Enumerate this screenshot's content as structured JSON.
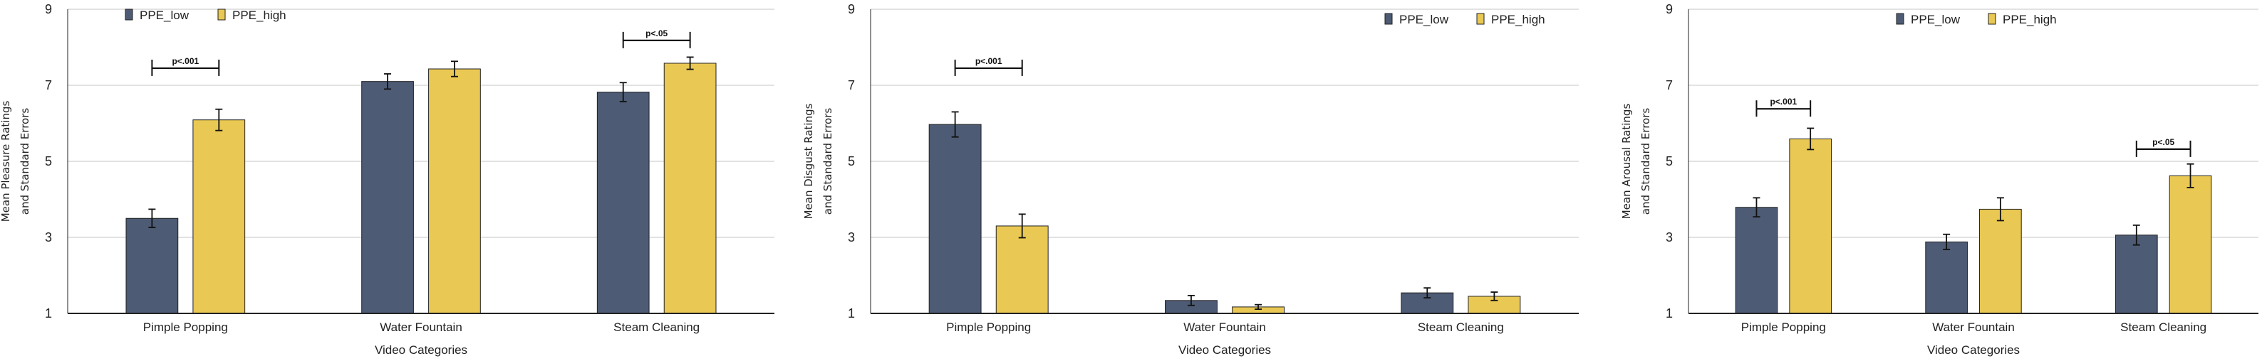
{
  "colors": {
    "PPE_low": "#4d5b74",
    "PPE_high": "#e9c853",
    "grid": "#d9d9d9",
    "axis": "#222222"
  },
  "chart_data": [
    {
      "type": "bar",
      "ylabel_lines": [
        "Mean Pleasure Ratings",
        "and Standard Errors"
      ],
      "xlabel": "Video Categories",
      "ylim": [
        1,
        9
      ],
      "yticks": [
        "1",
        "3",
        "5",
        "7",
        "9"
      ],
      "grid": true,
      "legend": "top-left",
      "categories": [
        "Pimple Popping",
        "Water Fountain",
        "Steam Cleaning"
      ],
      "series": [
        {
          "name": "PPE_low",
          "values": [
            3.5,
            7.1,
            6.82
          ],
          "se": [
            0.24,
            0.2,
            0.25
          ]
        },
        {
          "name": "PPE_high",
          "values": [
            6.09,
            7.43,
            7.58
          ],
          "se": [
            0.28,
            0.2,
            0.16
          ]
        }
      ],
      "annotations": [
        {
          "category": 0,
          "text": "p<.001",
          "y": 7.45
        },
        {
          "category": 2,
          "text": "p<.05",
          "y": 8.18
        }
      ]
    },
    {
      "type": "bar",
      "ylabel_lines": [
        "Mean Disgust Ratings",
        "and Standard Errors"
      ],
      "xlabel": "Video Categories",
      "ylim": [
        1,
        9
      ],
      "yticks": [
        "1",
        "3",
        "5",
        "7",
        "9"
      ],
      "grid": true,
      "legend": "top-right",
      "categories": [
        "Pimple Popping",
        "Water Fountain",
        "Steam Cleaning"
      ],
      "series": [
        {
          "name": "PPE_low",
          "values": [
            5.97,
            1.34,
            1.54
          ],
          "se": [
            0.33,
            0.13,
            0.13
          ]
        },
        {
          "name": "PPE_high",
          "values": [
            3.3,
            1.17,
            1.45
          ],
          "se": [
            0.31,
            0.06,
            0.11
          ]
        }
      ],
      "annotations": [
        {
          "category": 0,
          "text": "p<.001",
          "y": 7.45
        }
      ]
    },
    {
      "type": "bar",
      "ylabel_lines": [
        "Mean Arousal Ratings",
        "and Standard Errors"
      ],
      "xlabel": "Video Categories",
      "ylim": [
        1,
        9
      ],
      "yticks": [
        "1",
        "3",
        "5",
        "7",
        "9"
      ],
      "grid": true,
      "legend": "top-center",
      "categories": [
        "Pimple Popping",
        "Water Fountain",
        "Steam Cleaning"
      ],
      "series": [
        {
          "name": "PPE_low",
          "values": [
            3.79,
            2.88,
            3.06
          ],
          "se": [
            0.25,
            0.2,
            0.26
          ]
        },
        {
          "name": "PPE_high",
          "values": [
            5.59,
            3.74,
            4.62
          ],
          "se": [
            0.28,
            0.3,
            0.31
          ]
        }
      ],
      "annotations": [
        {
          "category": 0,
          "text": "p<.001",
          "y": 6.38
        },
        {
          "category": 2,
          "text": "p<.05",
          "y": 5.32
        }
      ]
    }
  ]
}
